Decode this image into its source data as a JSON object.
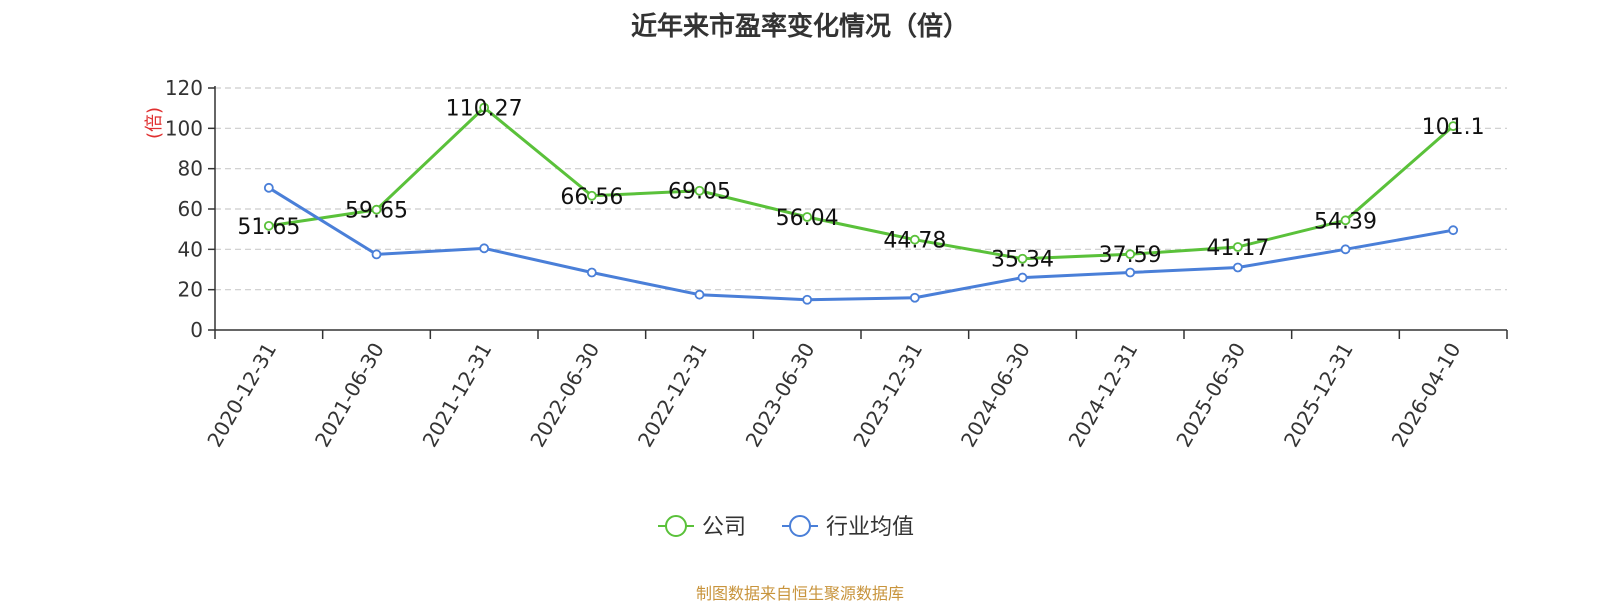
{
  "chart_data": {
    "type": "line",
    "title": "近年来市盈率变化情况（倍）",
    "ylabel": "(倍)",
    "xlabel": "",
    "ylim": [
      0,
      120
    ],
    "yticks": [
      0,
      20,
      40,
      60,
      80,
      100,
      120
    ],
    "grid": true,
    "legend_position": "bottom",
    "categories": [
      "2020-12-31",
      "2021-06-30",
      "2021-12-31",
      "2022-06-30",
      "2022-12-31",
      "2023-06-30",
      "2023-12-31",
      "2024-06-30",
      "2024-12-31",
      "2025-06-30",
      "2025-12-31",
      "2026-04-10"
    ],
    "series": [
      {
        "name": "公司",
        "color": "#5ac13a",
        "values": [
          51.65,
          59.65,
          110.27,
          66.56,
          69.05,
          56.04,
          44.78,
          35.34,
          37.59,
          41.17,
          54.39,
          101.1
        ],
        "labels": [
          "51.65",
          "59.65",
          "110.27",
          "66.56",
          "69.05",
          "56.04",
          "44.78",
          "35.34",
          "37.59",
          "41.17",
          "54.39",
          "101.1"
        ]
      },
      {
        "name": "行业均值",
        "color": "#4a7fd8",
        "values": [
          70.5,
          37.5,
          40.5,
          28.5,
          17.5,
          15.0,
          16.0,
          26.0,
          28.5,
          31.0,
          40.0,
          49.5
        ]
      }
    ],
    "source": "制图数据来自恒生聚源数据库"
  }
}
